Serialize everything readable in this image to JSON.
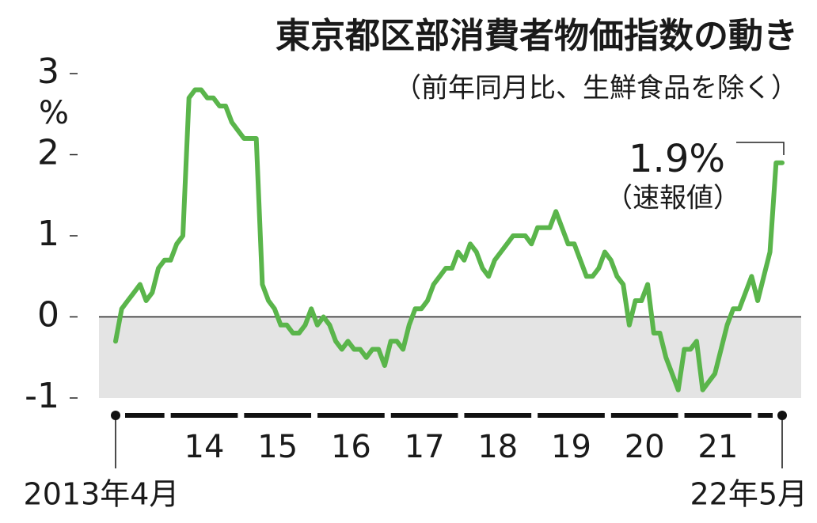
{
  "chart_data": {
    "type": "line",
    "title": "東京都区部消費者物価指数の動き",
    "subtitle": "（前年同月比、生鮮食品を除く）",
    "y_label": "%",
    "categories": [
      "2013年4月",
      null,
      null,
      null,
      null,
      null,
      null,
      null,
      null,
      null,
      null,
      null,
      null,
      null,
      "14",
      null,
      null,
      null,
      null,
      null,
      null,
      null,
      null,
      null,
      null,
      null,
      "15",
      null,
      null,
      null,
      null,
      null,
      null,
      null,
      null,
      null,
      null,
      null,
      "16",
      null,
      null,
      null,
      null,
      null,
      null,
      null,
      null,
      null,
      null,
      null,
      "17",
      null,
      null,
      null,
      null,
      null,
      null,
      null,
      null,
      null,
      null,
      null,
      "18",
      null,
      null,
      null,
      null,
      null,
      null,
      null,
      null,
      null,
      null,
      null,
      "19",
      null,
      null,
      null,
      null,
      null,
      null,
      null,
      null,
      null,
      null,
      null,
      "20",
      null,
      null,
      null,
      null,
      null,
      null,
      null,
      null,
      null,
      null,
      null,
      "21",
      null,
      null,
      null,
      null,
      null,
      null,
      null,
      null,
      null,
      null,
      "22年5月"
    ],
    "series": [
      {
        "color": "#5ab54b",
        "values": [
          -0.3,
          0.1,
          0.2,
          0.3,
          0.4,
          0.2,
          0.3,
          0.6,
          0.7,
          0.7,
          0.9,
          1.0,
          2.7,
          2.8,
          2.8,
          2.7,
          2.7,
          2.6,
          2.6,
          2.4,
          2.3,
          2.2,
          2.2,
          2.2,
          0.4,
          0.2,
          0.1,
          -0.1,
          -0.1,
          -0.2,
          -0.2,
          -0.1,
          0.1,
          -0.1,
          0.0,
          -0.1,
          -0.3,
          -0.4,
          -0.3,
          -0.4,
          -0.4,
          -0.5,
          -0.4,
          -0.4,
          -0.6,
          -0.3,
          -0.3,
          -0.4,
          -0.1,
          0.1,
          0.1,
          0.2,
          0.4,
          0.5,
          0.6,
          0.6,
          0.8,
          0.7,
          0.9,
          0.8,
          0.6,
          0.5,
          0.7,
          0.8,
          0.9,
          1.0,
          1.0,
          1.0,
          0.9,
          1.1,
          1.1,
          1.1,
          1.3,
          1.1,
          0.9,
          0.9,
          0.7,
          0.5,
          0.5,
          0.6,
          0.8,
          0.7,
          0.5,
          0.4,
          -0.1,
          0.2,
          0.2,
          0.4,
          -0.2,
          -0.2,
          -0.5,
          -0.7,
          -0.9,
          -0.4,
          -0.4,
          -0.3,
          -0.9,
          -0.8,
          -0.7,
          -0.4,
          -0.1,
          0.1,
          0.1,
          0.3,
          0.5,
          0.2,
          0.5,
          0.8,
          1.9,
          1.9
        ],
        "value_labels": [
          null,
          null,
          null,
          null,
          null,
          null,
          null,
          null,
          null,
          null,
          null,
          null,
          null,
          null,
          null,
          null,
          null,
          null,
          null,
          null,
          null,
          null,
          null,
          null,
          null,
          null,
          null,
          null,
          null,
          null,
          null,
          null,
          null,
          null,
          null,
          null,
          null,
          null,
          null,
          null,
          null,
          null,
          null,
          null,
          null,
          null,
          null,
          null,
          null,
          null,
          null,
          null,
          null,
          null,
          null,
          null,
          null,
          null,
          null,
          null,
          null,
          null,
          null,
          null,
          null,
          null,
          null,
          null,
          null,
          null,
          null,
          null,
          null,
          null,
          null,
          null,
          null,
          null,
          null,
          null,
          null,
          null,
          null,
          null,
          null,
          null,
          null,
          null,
          null,
          null,
          null,
          null,
          null,
          null,
          null,
          null,
          null,
          null,
          null,
          null,
          null,
          null,
          null,
          null,
          null,
          null,
          null,
          null,
          null,
          "1.9%"
        ]
      }
    ],
    "annotations": [
      "（速報値）"
    ],
    "ylim": [
      -1,
      3
    ],
    "yticks": [
      -1,
      0,
      1,
      2,
      3
    ]
  }
}
